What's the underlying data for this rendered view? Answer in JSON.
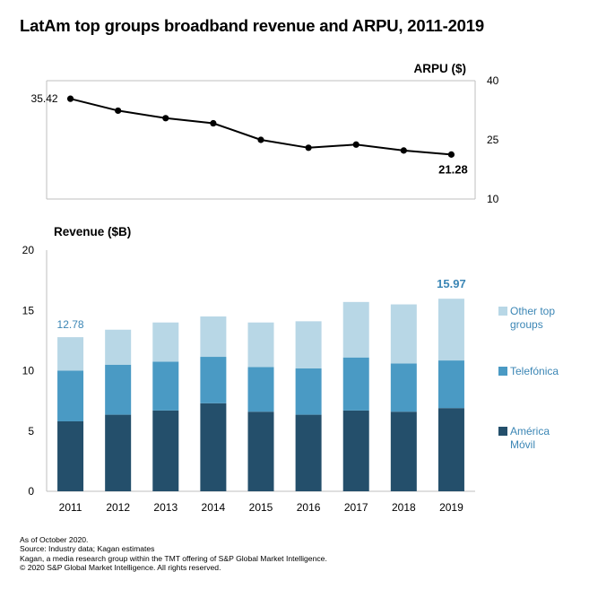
{
  "title": "LatAm top groups broadband revenue and ARPU, 2011-2019",
  "colors": {
    "america_movil": "#244f6b",
    "telefonica": "#4a9ac4",
    "other": "#b8d7e6",
    "accent": "#3b86b5",
    "axis": "#bfbfbf",
    "line": "#000000"
  },
  "chart_data": [
    {
      "type": "line",
      "title": "ARPU ($)",
      "x": [
        "2011",
        "2012",
        "2013",
        "2014",
        "2015",
        "2016",
        "2017",
        "2018",
        "2019"
      ],
      "series": [
        {
          "name": "ARPU",
          "values": [
            35.42,
            32.4,
            30.5,
            29.2,
            25.0,
            23.0,
            23.8,
            22.3,
            21.28
          ]
        }
      ],
      "ylim": [
        10,
        40
      ],
      "yticks": [
        "40",
        "25",
        "10"
      ],
      "annotations": [
        {
          "index": 0,
          "label": "35.42"
        },
        {
          "index": 8,
          "label": "21.28"
        }
      ]
    },
    {
      "type": "bar",
      "stacked": true,
      "title": "Revenue ($B)",
      "categories": [
        "2011",
        "2012",
        "2013",
        "2014",
        "2015",
        "2016",
        "2017",
        "2018",
        "2019"
      ],
      "series": [
        {
          "name": "América Móvil",
          "legend_lines": [
            "América",
            "Móvil"
          ],
          "values": [
            5.8,
            6.35,
            6.7,
            7.3,
            6.6,
            6.35,
            6.7,
            6.6,
            6.9
          ]
        },
        {
          "name": "Telefónica",
          "legend_lines": [
            "Telefónica"
          ],
          "values": [
            4.2,
            4.15,
            4.05,
            3.85,
            3.7,
            3.85,
            4.4,
            4.0,
            3.95
          ]
        },
        {
          "name": "Other top groups",
          "legend_lines": [
            "Other top",
            "groups"
          ],
          "values": [
            2.78,
            2.9,
            3.25,
            3.35,
            3.7,
            3.9,
            4.6,
            4.9,
            5.12
          ]
        }
      ],
      "totals": [
        {
          "index": 0,
          "label": "12.78"
        },
        {
          "index": 8,
          "label": "15.97"
        }
      ],
      "ylim": [
        0,
        20
      ],
      "yticks": [
        "0",
        "5",
        "10",
        "15",
        "20"
      ]
    }
  ],
  "footer": {
    "lines": [
      "As of October 2020.",
      "Source: Industry data; Kagan estimates",
      "Kagan, a media research group within the TMT offering of S&P Global Market Intelligence.",
      "© 2020 S&P Global Market Intelligence. All rights reserved."
    ]
  }
}
